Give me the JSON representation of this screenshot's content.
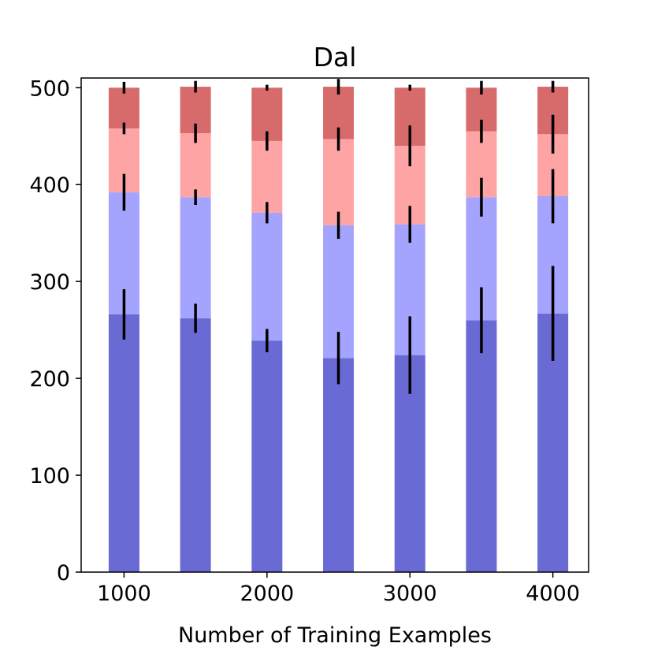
{
  "chart_data": {
    "type": "bar",
    "stacked": true,
    "title": "Dal",
    "xlabel": "Number of Training Examples",
    "ylabel": "",
    "x": [
      1000,
      1500,
      2000,
      2500,
      3000,
      3500,
      4000
    ],
    "xticks": [
      1000,
      2000,
      3000,
      4000
    ],
    "yticks": [
      0,
      100,
      200,
      300,
      400,
      500
    ],
    "xlim": [
      700,
      4250
    ],
    "ylim": [
      0,
      510
    ],
    "grid": false,
    "legend": "none",
    "series": [
      {
        "color": "#6a6ad5",
        "values": [
          266,
          262,
          239,
          221,
          224,
          260,
          267
        ],
        "errors": [
          26,
          15,
          12,
          27,
          40,
          34,
          49
        ]
      },
      {
        "color": "#a4a4fe",
        "values": [
          126,
          125,
          132,
          137,
          135,
          127,
          121
        ],
        "errors": [
          19,
          8,
          11,
          14,
          19,
          20,
          28
        ]
      },
      {
        "color": "#fea4a4",
        "values": [
          66,
          66,
          74,
          89,
          81,
          68,
          64
        ],
        "errors": [
          6,
          10,
          10,
          12,
          21,
          12,
          20
        ]
      },
      {
        "color": "#d76a6a",
        "values": [
          42,
          48,
          55,
          54,
          60,
          45,
          49
        ],
        "errors": [
          6,
          6,
          3,
          8,
          3,
          7,
          6
        ]
      }
    ]
  }
}
